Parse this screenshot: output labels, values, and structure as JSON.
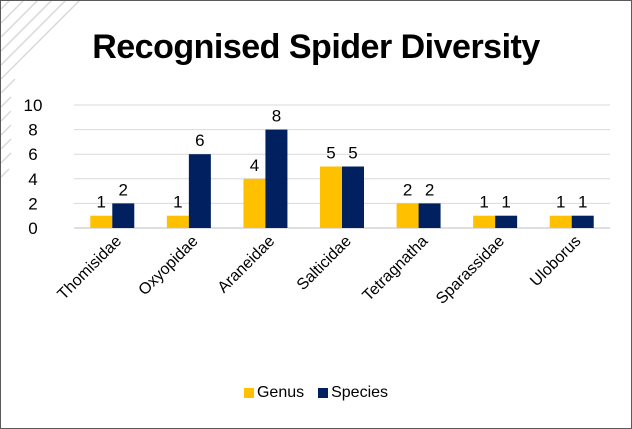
{
  "chart_data": {
    "type": "bar",
    "title": "Recognised Spider Diversity",
    "categories": [
      "Thomisidae",
      "Oxyopidae",
      "Araneidae",
      "Salticidae",
      "Tetragnatha",
      "Sparassidae",
      "Uloborus"
    ],
    "series": [
      {
        "name": "Genus",
        "values": [
          1,
          1,
          4,
          5,
          2,
          1,
          1
        ],
        "color": "#FFC000"
      },
      {
        "name": "Species",
        "values": [
          2,
          6,
          8,
          5,
          2,
          1,
          1
        ],
        "color": "#002060"
      }
    ],
    "yticks": [
      "0",
      "2",
      "4",
      "6",
      "8",
      "10"
    ],
    "ylim": [
      0,
      10
    ],
    "grid": true,
    "legend_position": "bottom",
    "data_labels": true
  }
}
